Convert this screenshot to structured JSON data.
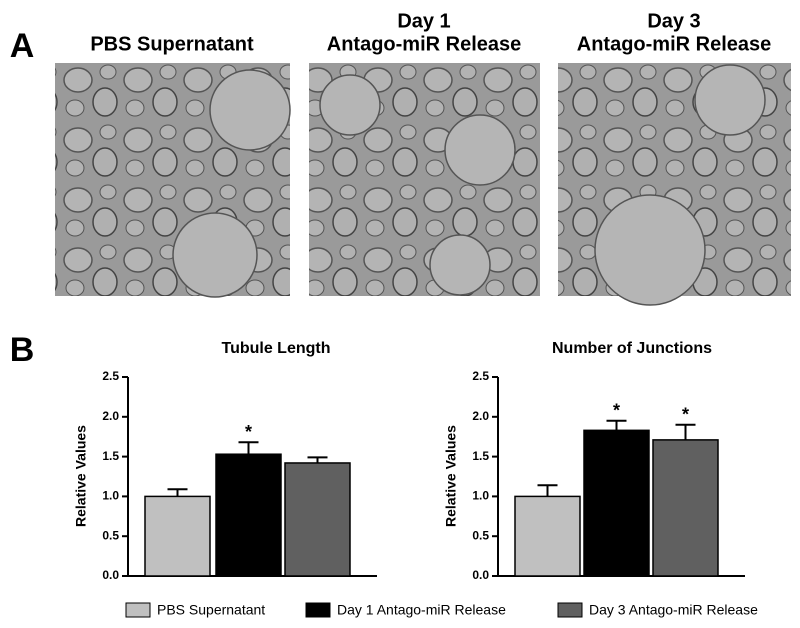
{
  "panel_labels": {
    "a": "A",
    "b": "B"
  },
  "images": [
    {
      "title_lines": [
        "PBS Supernatant"
      ]
    },
    {
      "title_lines": [
        "Day 1",
        "Antago-miR Release"
      ]
    },
    {
      "title_lines": [
        "Day 3",
        "Antago-miR Release"
      ]
    }
  ],
  "legend": {
    "entries": [
      {
        "name": "PBS Supernatant",
        "color": "#c0c0c0"
      },
      {
        "name": "Day 1 Antago-miR Release",
        "color": "#000000"
      },
      {
        "name": "Day 3 Antago-miR Release",
        "color": "#606060"
      }
    ]
  },
  "chart_data": [
    {
      "type": "bar",
      "title": "Tubule Length",
      "y_label": "Relative Values",
      "values": [
        1.0,
        1.53,
        1.42
      ],
      "errors": [
        0.09,
        0.15,
        0.07
      ],
      "annotations": [
        {
          "index": 1,
          "text": "*"
        }
      ],
      "ylim": [
        0,
        2.5
      ],
      "yticks": [
        {
          "value": 0,
          "label": "0.0"
        },
        0.5,
        {
          "value": 1,
          "label": "1.0"
        },
        1.5,
        {
          "value": 2,
          "label": "2.0"
        },
        2.5
      ]
    },
    {
      "type": "bar",
      "title": "Number of Junctions",
      "y_label": "Relative Values",
      "values": [
        1.0,
        1.83,
        1.71
      ],
      "errors": [
        0.14,
        0.12,
        0.19
      ],
      "annotations": [
        {
          "index": 1,
          "text": "*"
        },
        {
          "index": 2,
          "text": "*"
        }
      ],
      "ylim": [
        0,
        2.5
      ],
      "yticks": [
        {
          "value": 0,
          "label": "0.0"
        },
        0.5,
        {
          "value": 1,
          "label": "1.0"
        },
        1.5,
        {
          "value": 2,
          "label": "2.0"
        },
        2.5
      ]
    }
  ]
}
